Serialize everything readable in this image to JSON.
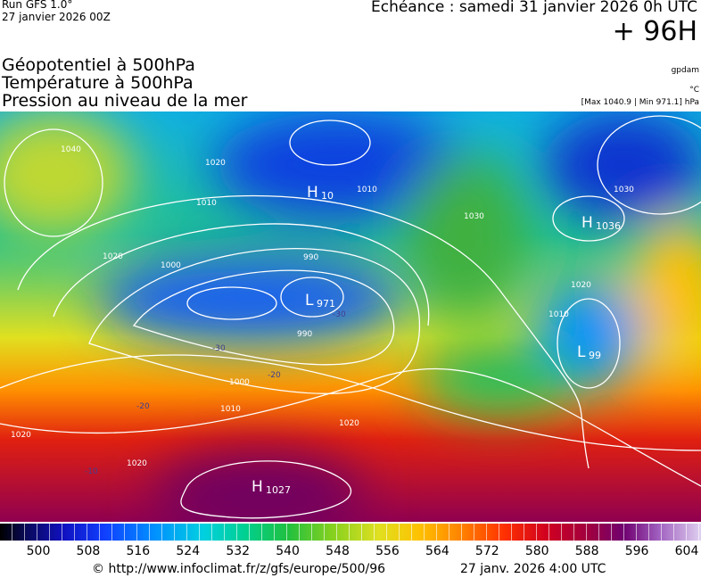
{
  "header": {
    "run": "Run GFS 1.0°",
    "run_date": "27 janvier 2026 00Z",
    "valid": "Echéance : samedi 31 janvier 2026 0h UTC",
    "lead": "+ 96H"
  },
  "titles": [
    "Géopotentiel à 500hPa",
    "Température à 500hPa",
    "Pression au niveau de la mer"
  ],
  "units": {
    "geopotential": "gpdam",
    "temperature": "°C",
    "pressure": "[Max 1040.9 | Min 971.1] hPa"
  },
  "map": {
    "centers": [
      {
        "letter": "H",
        "value": "1027"
      },
      {
        "letter": "L",
        "value": "971"
      },
      {
        "letter": "H",
        "value": "1036"
      },
      {
        "letter": "L",
        "value": "99"
      },
      {
        "letter": "H",
        "value": "10"
      }
    ],
    "isobars": [
      "1040",
      "1030",
      "1020",
      "1020",
      "1010",
      "1000",
      "990",
      "990",
      "1000",
      "1010",
      "1020",
      "1020",
      "1030",
      "1020",
      "1010",
      "1010",
      "1020"
    ],
    "isotherms": [
      "-30",
      "-30",
      "-20",
      "-20",
      "-10"
    ]
  },
  "colorbar": {
    "ticks": [
      "500",
      "508",
      "516",
      "524",
      "532",
      "540",
      "548",
      "556",
      "564",
      "572",
      "580",
      "588",
      "596",
      "604"
    ]
  },
  "footer": {
    "url": "© http://www.infoclimat.fr/z/gfs/europe/500/96",
    "issued": "27 janv. 2026  4:00 UTC"
  }
}
